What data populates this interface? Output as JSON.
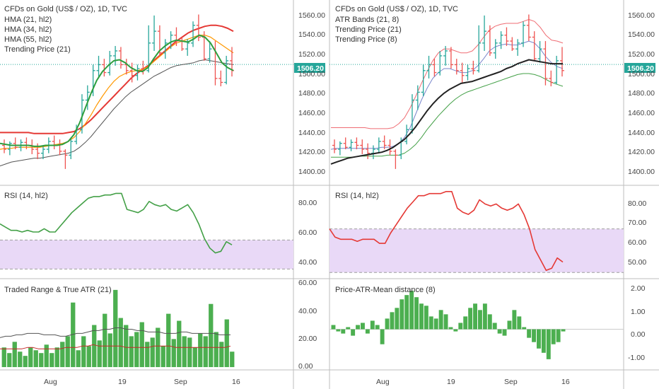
{
  "colors": {
    "up": "#26a69a",
    "down": "#ef5350",
    "bar_green": "#4caf50",
    "hma21": "#2e9e3e",
    "hma34": "#ff9800",
    "hma55": "#e53935",
    "trend": "#555555",
    "band_upper": "#ef6c73",
    "band_lower": "#43a047",
    "trend21": "#7986cb",
    "trend8": "#222222",
    "rsi_left": "#43a047",
    "rsi_right": "#e53935",
    "rsi_zone": "#e9d9f7",
    "avg_line": "#555555",
    "atr_line": "#c62828",
    "price_line": "#26a69a",
    "badge": "#26a69a"
  },
  "current_price": "1506.20",
  "x_axis": {
    "ticks": [
      "Aug",
      "19",
      "Sep",
      "16"
    ]
  },
  "chart_data": [
    {
      "type": "candlestick",
      "panel": "left-price",
      "title": "CFDs on Gold (US$ / OZ), 1D, TVC",
      "legend": [
        "HMA (21, hl2)",
        "HMA (34, hl2)",
        "HMA (55, hl2)",
        "Trending Price (21)"
      ],
      "yticks": [
        "1560.00",
        "1540.00",
        "1520.00",
        "1500.00",
        "1480.00",
        "1460.00",
        "1440.00",
        "1420.00",
        "1400.00"
      ],
      "ylim": [
        1392,
        1566
      ],
      "ohlc": [
        [
          1424,
          1430,
          1416,
          1420
        ],
        [
          1420,
          1428,
          1414,
          1426
        ],
        [
          1426,
          1432,
          1420,
          1422
        ],
        [
          1422,
          1430,
          1418,
          1427
        ],
        [
          1427,
          1432,
          1420,
          1424
        ],
        [
          1424,
          1430,
          1415,
          1420
        ],
        [
          1420,
          1426,
          1410,
          1416
        ],
        [
          1416,
          1424,
          1410,
          1420
        ],
        [
          1420,
          1432,
          1416,
          1428
        ],
        [
          1428,
          1434,
          1420,
          1424
        ],
        [
          1424,
          1430,
          1414,
          1418
        ],
        [
          1418,
          1420,
          1400,
          1414
        ],
        [
          1414,
          1432,
          1410,
          1428
        ],
        [
          1428,
          1445,
          1425,
          1440
        ],
        [
          1440,
          1476,
          1436,
          1470
        ],
        [
          1470,
          1485,
          1460,
          1478
        ],
        [
          1478,
          1506,
          1474,
          1500
        ],
        [
          1500,
          1515,
          1492,
          1506
        ],
        [
          1506,
          1512,
          1494,
          1498
        ],
        [
          1498,
          1520,
          1495,
          1515
        ],
        [
          1515,
          1525,
          1505,
          1520
        ],
        [
          1520,
          1524,
          1502,
          1506
        ],
        [
          1506,
          1512,
          1496,
          1500
        ],
        [
          1500,
          1508,
          1488,
          1495
        ],
        [
          1495,
          1506,
          1490,
          1502
        ],
        [
          1502,
          1510,
          1496,
          1500
        ],
        [
          1500,
          1546,
          1498,
          1528
        ],
        [
          1528,
          1556,
          1520,
          1540
        ],
        [
          1540,
          1546,
          1515,
          1518
        ],
        [
          1518,
          1532,
          1512,
          1528
        ],
        [
          1528,
          1540,
          1522,
          1536
        ],
        [
          1536,
          1544,
          1525,
          1530
        ],
        [
          1530,
          1534,
          1520,
          1522
        ],
        [
          1522,
          1532,
          1515,
          1528
        ],
        [
          1528,
          1550,
          1524,
          1546
        ],
        [
          1546,
          1557,
          1530,
          1534
        ],
        [
          1534,
          1540,
          1510,
          1512
        ],
        [
          1512,
          1530,
          1508,
          1522
        ],
        [
          1522,
          1530,
          1485,
          1492
        ],
        [
          1492,
          1500,
          1484,
          1488
        ],
        [
          1488,
          1515,
          1486,
          1510
        ],
        [
          1510,
          1524,
          1494,
          1500
        ]
      ],
      "hma21": [
        1426,
        1425,
        1424,
        1424,
        1424,
        1424,
        1423,
        1423,
        1424,
        1424,
        1424,
        1425,
        1428,
        1435,
        1447,
        1462,
        1477,
        1490,
        1499,
        1505,
        1510,
        1511,
        1508,
        1503,
        1500,
        1499,
        1503,
        1512,
        1520,
        1525,
        1529,
        1531,
        1530,
        1529,
        1532,
        1536,
        1534,
        1528,
        1518,
        1508,
        1503,
        1500
      ],
      "hma34": [
        1420,
        1421,
        1421,
        1422,
        1422,
        1422,
        1422,
        1422,
        1423,
        1424,
        1425,
        1426,
        1428,
        1432,
        1438,
        1446,
        1455,
        1465,
        1474,
        1482,
        1489,
        1494,
        1497,
        1499,
        1500,
        1501,
        1504,
        1509,
        1514,
        1519,
        1524,
        1528,
        1530,
        1532,
        1534,
        1536,
        1536,
        1534,
        1530,
        1526,
        1522,
        1518
      ],
      "hma55": [
        1437,
        1437,
        1437,
        1437,
        1437,
        1437,
        1436,
        1436,
        1436,
        1436,
        1436,
        1436,
        1437,
        1438,
        1441,
        1445,
        1450,
        1456,
        1462,
        1468,
        1474,
        1480,
        1486,
        1492,
        1497,
        1501,
        1505,
        1510,
        1515,
        1520,
        1525,
        1530,
        1534,
        1538,
        1541,
        1543,
        1545,
        1546,
        1546,
        1545,
        1543,
        1540
      ],
      "trend21": [
        1403,
        1405,
        1407,
        1408,
        1409,
        1410,
        1411,
        1411,
        1412,
        1413,
        1414,
        1415,
        1416,
        1418,
        1422,
        1427,
        1433,
        1440,
        1447,
        1454,
        1461,
        1467,
        1473,
        1478,
        1482,
        1486,
        1490,
        1494,
        1497,
        1500,
        1503,
        1505,
        1506,
        1507,
        1508,
        1510,
        1511,
        1510,
        1509,
        1508,
        1507,
        1506
      ]
    },
    {
      "type": "line",
      "panel": "left-rsi",
      "title": "RSI (14, hl2)",
      "yticks": [
        "80.00",
        "60.00",
        "40.00"
      ],
      "ylim": [
        30,
        88
      ],
      "zone": [
        36,
        54
      ],
      "values": [
        64,
        62,
        60,
        60,
        59,
        60,
        59,
        59,
        61,
        59,
        59,
        63,
        67,
        71,
        74,
        77,
        80,
        81,
        81,
        82,
        82,
        83,
        83,
        73,
        72,
        71,
        73,
        78,
        76,
        75,
        76,
        73,
        72,
        74,
        76,
        71,
        64,
        55,
        49,
        46,
        47,
        53,
        51
      ]
    },
    {
      "type": "bar",
      "panel": "left-range",
      "title": "Traded Range & True ATR (21)",
      "yticks": [
        "60.00",
        "40.00",
        "20.00",
        "0.00"
      ],
      "ylim": [
        -2,
        62
      ],
      "values": [
        14,
        10,
        18,
        11,
        8,
        14,
        12,
        10,
        16,
        10,
        14,
        18,
        22,
        46,
        12,
        22,
        15,
        30,
        19,
        38,
        24,
        55,
        35,
        30,
        22,
        25,
        32,
        18,
        21,
        28,
        15,
        38,
        20,
        33,
        22,
        21,
        14,
        24,
        22,
        45,
        25,
        18,
        34,
        11
      ],
      "avg": [
        21,
        22,
        22,
        23,
        23,
        24,
        24,
        24,
        23,
        23,
        23,
        22,
        22,
        23,
        24,
        24,
        25,
        26,
        26,
        27,
        27,
        28,
        28,
        27,
        27,
        26,
        26,
        25,
        25,
        25,
        24,
        24,
        24,
        25,
        25,
        24,
        24,
        24,
        24,
        24,
        23,
        23,
        23
      ],
      "atr": [
        13,
        13,
        13,
        13,
        13,
        14,
        14,
        13,
        13,
        13,
        13,
        13,
        14,
        14,
        14,
        15,
        15,
        16,
        15,
        15,
        15,
        15,
        15,
        14,
        14,
        14,
        14,
        14,
        15,
        15,
        15,
        15,
        14,
        14,
        14,
        14,
        14,
        14,
        14,
        14,
        14,
        14,
        15
      ]
    },
    {
      "type": "candlestick",
      "panel": "right-price",
      "title": "CFDs on Gold (US$ / OZ), 1D, TVC",
      "legend": [
        "ATR Bands (21, 8)",
        "Trending Price (21)",
        "Trending Price (8)"
      ],
      "yticks": [
        "1560.00",
        "1540.00",
        "1520.00",
        "1500.00",
        "1480.00",
        "1460.00",
        "1440.00",
        "1420.00",
        "1400.00"
      ],
      "ylim": [
        1392,
        1566
      ],
      "band_upper": [
        1442,
        1442,
        1442,
        1442,
        1442,
        1442,
        1442,
        1441,
        1441,
        1441,
        1441,
        1442,
        1446,
        1452,
        1462,
        1474,
        1487,
        1499,
        1510,
        1518,
        1522,
        1522,
        1520,
        1518,
        1518,
        1520,
        1526,
        1534,
        1541,
        1545,
        1547,
        1548,
        1548,
        1548,
        1550,
        1552,
        1550,
        1544,
        1536,
        1531,
        1530,
        1528
      ],
      "band_lower": [
        1412,
        1412,
        1412,
        1412,
        1412,
        1413,
        1413,
        1413,
        1413,
        1413,
        1414,
        1414,
        1414,
        1416,
        1420,
        1425,
        1432,
        1440,
        1447,
        1454,
        1460,
        1466,
        1471,
        1475,
        1478,
        1480,
        1482,
        1484,
        1486,
        1488,
        1490,
        1492,
        1494,
        1496,
        1497,
        1497,
        1496,
        1494,
        1491,
        1488,
        1486,
        1484
      ],
      "trend21": [
        1420,
        1421,
        1421,
        1421,
        1421,
        1421,
        1421,
        1421,
        1421,
        1422,
        1422,
        1423,
        1426,
        1432,
        1442,
        1456,
        1470,
        1482,
        1492,
        1498,
        1502,
        1502,
        1500,
        1498,
        1498,
        1500,
        1505,
        1512,
        1520,
        1524,
        1526,
        1527,
        1526,
        1526,
        1528,
        1530,
        1528,
        1522,
        1514,
        1508,
        1504,
        1502
      ],
      "trend8": [
        1405,
        1407,
        1409,
        1411,
        1412,
        1413,
        1414,
        1415,
        1416,
        1417,
        1419,
        1422,
        1426,
        1430,
        1436,
        1443,
        1451,
        1459,
        1466,
        1472,
        1477,
        1481,
        1484,
        1487,
        1488,
        1489,
        1491,
        1493,
        1495,
        1497,
        1499,
        1502,
        1504,
        1507,
        1509,
        1511,
        1510,
        1509,
        1508,
        1507,
        1507,
        1507
      ]
    },
    {
      "type": "line",
      "panel": "right-rsi",
      "title": "RSI (14, hl2)",
      "yticks": [
        "80.00",
        "70.00",
        "60.00",
        "50.00"
      ],
      "ylim": [
        42,
        87
      ],
      "zone": [
        45,
        66
      ],
      "values": [
        66,
        62,
        61,
        61,
        61,
        60,
        61,
        61,
        61,
        59,
        59,
        64,
        68,
        72,
        76,
        79,
        82,
        82,
        83,
        83,
        83,
        84,
        84,
        76,
        74,
        73,
        75,
        80,
        78,
        77,
        78,
        76,
        75,
        76,
        78,
        73,
        66,
        56,
        51,
        46,
        47,
        52,
        50
      ]
    },
    {
      "type": "bar",
      "panel": "right-distance",
      "title": "Price-ATR-Mean distance (8)",
      "yticks": [
        "2.00",
        "1.00",
        "0.00",
        "-1.00"
      ],
      "ylim": [
        -1.9,
        2.3
      ],
      "values": [
        0.2,
        -0.1,
        -0.2,
        0.1,
        -0.3,
        0.2,
        0.3,
        -0.2,
        0.4,
        0.2,
        -0.7,
        0.5,
        0.8,
        1.0,
        1.4,
        1.6,
        1.8,
        1.5,
        1.2,
        1.1,
        0.6,
        0.5,
        0.9,
        0.7,
        0.1,
        -0.1,
        0.3,
        0.6,
        1.0,
        1.2,
        0.9,
        1.2,
        0.7,
        0.3,
        -0.2,
        -0.3,
        0.4,
        0.9,
        0.6,
        0.1,
        -0.4,
        -0.6,
        -0.9,
        -1.1,
        -1.4,
        -0.7,
        -0.6,
        -0.1
      ]
    }
  ]
}
